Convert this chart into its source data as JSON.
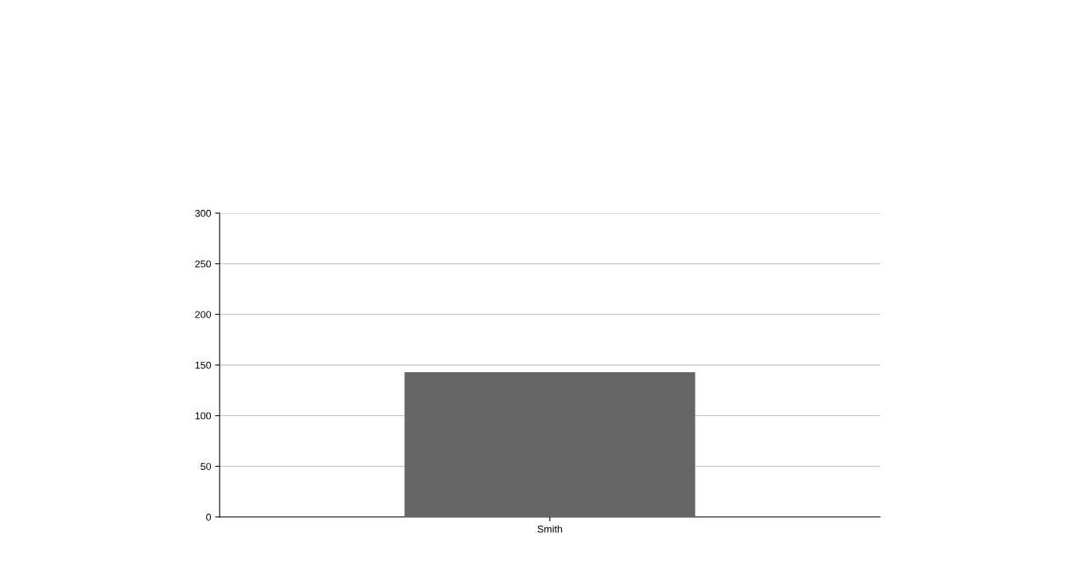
{
  "chart_data": {
    "type": "bar",
    "categories": [
      "Smith"
    ],
    "values": [
      143
    ],
    "color": "#666666",
    "ylim": [
      0,
      300
    ],
    "yticks": [
      0,
      50,
      100,
      150,
      200,
      250,
      300
    ],
    "grid": "y"
  }
}
